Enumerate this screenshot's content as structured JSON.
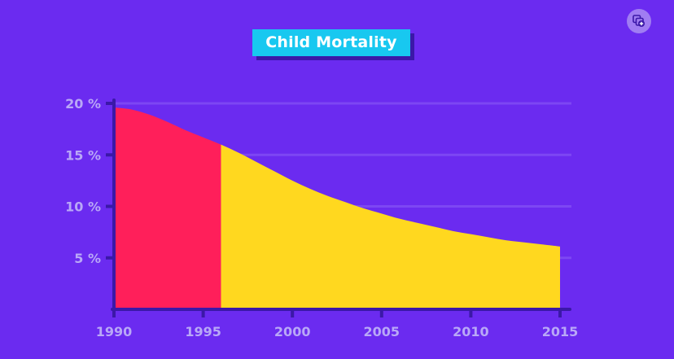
{
  "chart_data": {
    "type": "area",
    "title": "Child Mortality",
    "xlabel": "",
    "ylabel": "",
    "x": [
      1990,
      1991,
      1992,
      1993,
      1994,
      1995,
      1996,
      1997,
      1998,
      1999,
      2000,
      2001,
      2002,
      2003,
      2004,
      2005,
      2006,
      2007,
      2008,
      2009,
      2010,
      2011,
      2012,
      2013,
      2014,
      2015
    ],
    "series": [
      {
        "values": [
          19.6,
          19.4,
          18.9,
          18.2,
          17.4,
          16.7,
          16.0,
          15.2,
          14.3,
          13.4,
          12.5,
          11.7,
          11.0,
          10.4,
          9.8,
          9.3,
          8.8,
          8.4,
          8.0,
          7.6,
          7.3,
          7.0,
          6.7,
          6.5,
          6.3,
          6.1
        ]
      }
    ],
    "highlight_range": [
      1990,
      1996
    ],
    "xlim": [
      1990,
      2015
    ],
    "ylim": [
      0,
      20
    ],
    "xticks": [
      1990,
      1995,
      2000,
      2005,
      2010,
      2015
    ],
    "xtick_labels": [
      "1990",
      "1995",
      "2000",
      "2005",
      "2010",
      "2015"
    ],
    "yticks": [
      5,
      10,
      15,
      20
    ],
    "ytick_labels": [
      "5 %",
      "10 %",
      "15 %",
      "20 %"
    ],
    "grid": true,
    "legend": "none",
    "colors": {
      "background": "#6b2bf0",
      "highlight_fill": "#ff1f5a",
      "area_fill": "#ffd81f",
      "axis": "#3b18a8",
      "grid": "#7d47f3",
      "tick_label": "#b9a8f7",
      "title_box": "#18c8f0",
      "title_shadow": "#3b18a8",
      "title_text": "#ffffff",
      "corner_button": "#a07df2"
    }
  },
  "ui": {
    "corner_icon": "layers-plus-icon"
  }
}
